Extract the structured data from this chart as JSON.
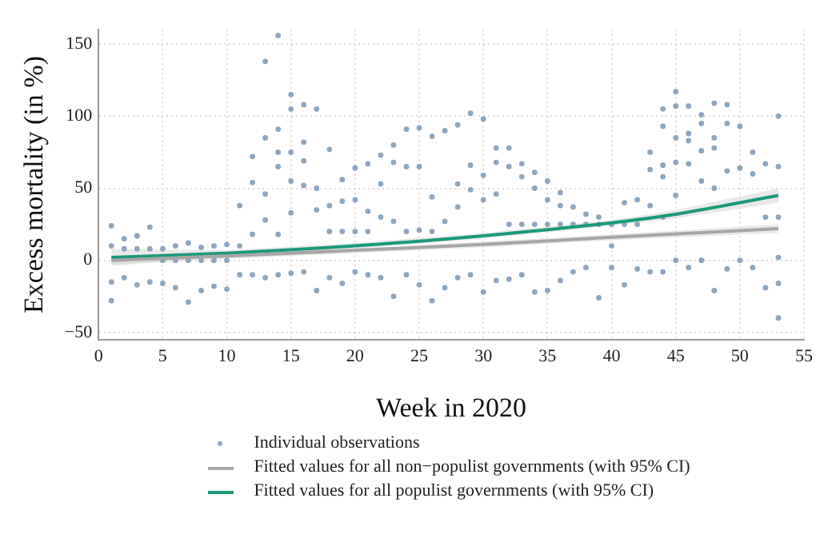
{
  "chart_data": {
    "type": "scatter",
    "xlabel": "Week in 2020",
    "ylabel": "Excess mortality (in %)",
    "xlim": [
      0,
      55
    ],
    "xticks": [
      0,
      5,
      10,
      15,
      20,
      25,
      30,
      35,
      40,
      45,
      50,
      55
    ],
    "ylim": [
      -55,
      160
    ],
    "yticks": [
      -50,
      0,
      50,
      100,
      150
    ],
    "grid": true,
    "legend": "bottom",
    "series": [
      {
        "name": "Individual observations",
        "marker": "circle",
        "color": "#8fa6bd",
        "x": [
          1,
          1,
          1,
          1,
          2,
          2,
          2,
          3,
          3,
          3,
          4,
          4,
          4,
          5,
          5,
          5,
          6,
          6,
          6,
          7,
          7,
          7,
          8,
          8,
          8,
          9,
          9,
          9,
          10,
          10,
          10,
          11,
          11,
          11,
          12,
          12,
          12,
          12,
          13,
          13,
          13,
          13,
          13,
          14,
          14,
          14,
          14,
          14,
          14,
          15,
          15,
          15,
          15,
          15,
          15,
          16,
          16,
          16,
          16,
          16,
          17,
          17,
          17,
          17,
          18,
          18,
          18,
          18,
          19,
          19,
          19,
          19,
          20,
          20,
          20,
          20,
          21,
          21,
          21,
          21,
          22,
          22,
          22,
          22,
          23,
          23,
          23,
          23,
          24,
          24,
          24,
          24,
          25,
          25,
          25,
          25,
          26,
          26,
          26,
          26,
          27,
          27,
          27,
          28,
          28,
          28,
          28,
          29,
          29,
          29,
          29,
          30,
          30,
          30,
          30,
          31,
          31,
          31,
          31,
          32,
          32,
          32,
          32,
          33,
          33,
          33,
          33,
          34,
          34,
          34,
          34,
          35,
          35,
          35,
          35,
          36,
          36,
          36,
          36,
          37,
          37,
          37,
          38,
          38,
          38,
          39,
          39,
          39,
          40,
          40,
          40,
          41,
          41,
          41,
          42,
          42,
          42,
          43,
          43,
          43,
          43,
          44,
          44,
          44,
          44,
          44,
          44,
          45,
          45,
          45,
          45,
          45,
          45,
          46,
          46,
          46,
          46,
          46,
          47,
          47,
          47,
          47,
          47,
          48,
          48,
          48,
          48,
          48,
          49,
          49,
          49,
          49,
          50,
          50,
          50,
          51,
          51,
          51,
          52,
          52,
          52,
          53,
          53,
          53,
          53,
          53,
          53
        ],
        "values": [
          24,
          10,
          -15,
          -28,
          15,
          8,
          -12,
          17,
          8,
          -17,
          23,
          8,
          -15,
          8,
          0,
          -16,
          10,
          0,
          -19,
          12,
          0,
          -29,
          9,
          0,
          -21,
          10,
          0,
          -18,
          11,
          0,
          -20,
          38,
          10,
          -10,
          72,
          54,
          18,
          -10,
          138,
          85,
          46,
          28,
          -12,
          156,
          91,
          75,
          65,
          18,
          -10,
          115,
          105,
          75,
          55,
          33,
          -9,
          108,
          82,
          69,
          52,
          -8,
          105,
          50,
          35,
          -21,
          77,
          38,
          20,
          -12,
          56,
          41,
          20,
          -16,
          64,
          42,
          20,
          -8,
          67,
          34,
          20,
          -10,
          73,
          53,
          30,
          -12,
          80,
          68,
          27,
          -25,
          91,
          65,
          20,
          -10,
          92,
          65,
          21,
          -17,
          86,
          44,
          20,
          -28,
          90,
          27,
          -19,
          94,
          53,
          37,
          -12,
          102,
          66,
          49,
          -10,
          98,
          59,
          42,
          -22,
          78,
          68,
          46,
          -14,
          78,
          65,
          25,
          -13,
          67,
          58,
          25,
          -10,
          61,
          50,
          25,
          -22,
          55,
          42,
          25,
          -21,
          47,
          38,
          25,
          -14,
          37,
          25,
          -8,
          32,
          25,
          -5,
          30,
          25,
          -26,
          25,
          10,
          -5,
          40,
          25,
          -17,
          42,
          25,
          -6,
          75,
          63,
          38,
          -8,
          105,
          93,
          66,
          58,
          30,
          -8,
          117,
          107,
          85,
          68,
          45,
          0,
          107,
          88,
          83,
          67,
          -5,
          101,
          95,
          76,
          55,
          0,
          109,
          85,
          78,
          50,
          -21,
          108,
          95,
          62,
          -6,
          93,
          64,
          0,
          75,
          60,
          -5,
          67,
          30,
          -19,
          100,
          65,
          30,
          2,
          -16,
          -40
        ]
      },
      {
        "name": "Fitted values for all non−populist governments (with 95% CI)",
        "type": "line",
        "marker": "none",
        "color": "#a6a6a6",
        "x": [
          1,
          10,
          20,
          30,
          40,
          53
        ],
        "values": [
          0,
          3,
          7,
          11,
          16,
          22
        ],
        "lower": [
          -3,
          1,
          5,
          9,
          14,
          19
        ],
        "upper": [
          3,
          5,
          8,
          13,
          18,
          25
        ]
      },
      {
        "name": "Fitted values for all populist governments (with 95% CI)",
        "type": "line",
        "marker": "none",
        "color": "#1a9a78",
        "x": [
          1,
          10,
          20,
          30,
          40,
          45,
          53
        ],
        "values": [
          2,
          5,
          10,
          17,
          26,
          32,
          45
        ],
        "lower": [
          -4,
          3,
          8,
          15,
          24,
          29,
          40
        ],
        "upper": [
          8,
          7,
          12,
          19,
          28,
          35,
          50
        ]
      }
    ]
  }
}
